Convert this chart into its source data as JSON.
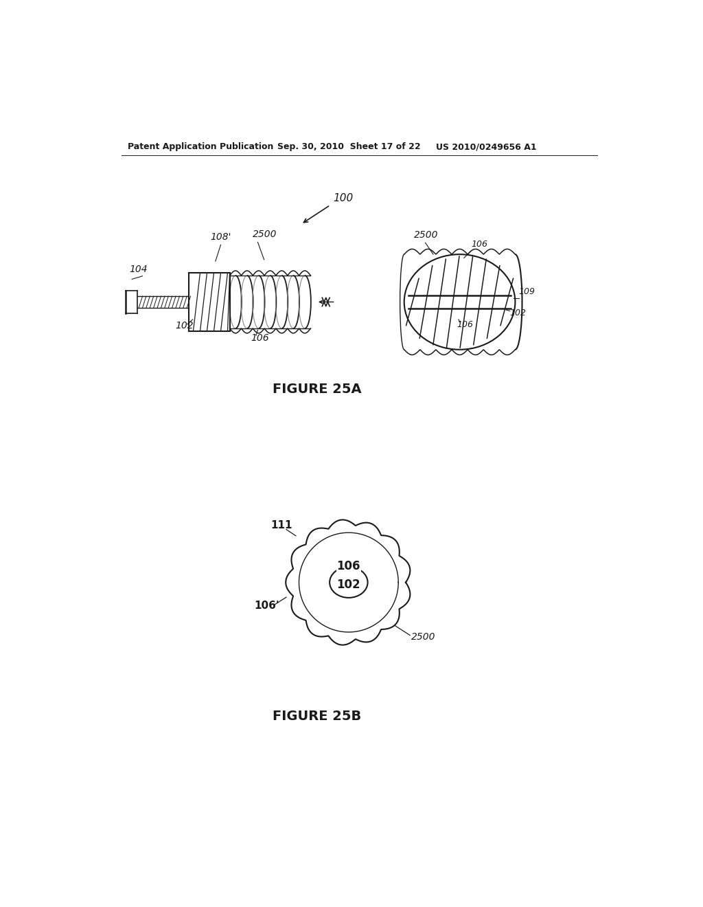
{
  "bg_color": "#ffffff",
  "header_left": "Patent Application Publication",
  "header_center": "Sep. 30, 2010  Sheet 17 of 22",
  "header_right": "US 2010/0249656 A1",
  "fig25a_caption": "FIGURE 25A",
  "fig25b_caption": "FIGURE 25B",
  "line_color": "#1a1a1a"
}
